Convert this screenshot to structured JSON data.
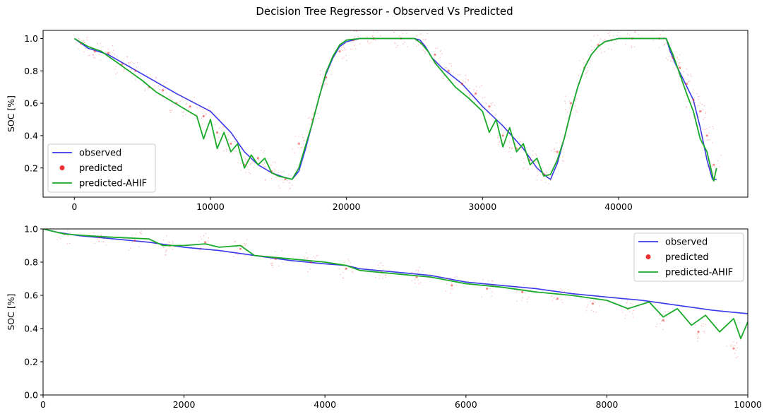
{
  "title": "Decision Tree Regressor - Observed Vs Predicted",
  "colors": {
    "observed": "#3a3ae8",
    "predicted": "#ee3030",
    "predicted_ahif": "#1aaa2a"
  },
  "chart_data": [
    {
      "type": "line",
      "xlabel": "",
      "ylabel": "SOC [%]",
      "xlim": [
        -2300,
        49500
      ],
      "ylim": [
        0.02,
        1.05
      ],
      "xticks": [
        0,
        10000,
        20000,
        30000,
        40000
      ],
      "xtick_labels": [
        "0",
        "10000",
        "20000",
        "30000",
        "40000"
      ],
      "yticks": [
        0.2,
        0.4,
        0.6,
        0.8,
        1.0
      ],
      "ytick_labels": [
        "0.2",
        "0.4",
        "0.6",
        "0.8",
        "1.0"
      ],
      "legend_position": "lower-left",
      "legend": [
        "observed",
        "predicted",
        "predicted-AHIF"
      ],
      "series": [
        {
          "name": "observed",
          "style": "line",
          "x": [
            0,
            1000,
            2500,
            5000,
            7500,
            10000,
            11500,
            12500,
            13500,
            14500,
            15500,
            16000,
            16500,
            17000,
            17500,
            18000,
            18500,
            19000,
            19500,
            20000,
            21000,
            23000,
            25000,
            25400,
            25800,
            26300,
            27000,
            28500,
            30000,
            31500,
            33000,
            34000,
            34800,
            35000,
            35500,
            36000,
            36500,
            37000,
            37500,
            38000,
            38500,
            39000,
            39500,
            40000,
            41000,
            43500,
            43800,
            44200,
            44800,
            45500,
            46000,
            46500,
            46900,
            47200
          ],
          "y": [
            1.0,
            0.94,
            0.9,
            0.78,
            0.66,
            0.55,
            0.42,
            0.3,
            0.22,
            0.17,
            0.14,
            0.13,
            0.18,
            0.32,
            0.48,
            0.64,
            0.78,
            0.88,
            0.95,
            0.98,
            1.0,
            1.0,
            1.0,
            0.99,
            0.95,
            0.88,
            0.82,
            0.72,
            0.58,
            0.46,
            0.32,
            0.2,
            0.14,
            0.13,
            0.23,
            0.38,
            0.55,
            0.7,
            0.82,
            0.9,
            0.95,
            0.98,
            0.99,
            1.0,
            1.0,
            1.0,
            0.92,
            0.84,
            0.74,
            0.62,
            0.45,
            0.25,
            0.13,
            0.13
          ]
        },
        {
          "name": "predicted",
          "style": "scatter",
          "x": [
            500,
            1500,
            2500,
            3500,
            4500,
            5500,
            6500,
            7500,
            8500,
            9500,
            10500,
            11500,
            12500,
            13500,
            14500,
            15500,
            16500,
            17500,
            18500,
            19500,
            20500,
            22000,
            24000,
            25500,
            26500,
            27500,
            28500,
            29500,
            30500,
            31500,
            32500,
            33500,
            34500,
            35500,
            36500,
            37500,
            38500,
            39500,
            41000,
            43000,
            44000,
            44500,
            45000,
            45500,
            46000,
            46500,
            47000
          ],
          "y": [
            0.97,
            0.92,
            0.91,
            0.84,
            0.8,
            0.7,
            0.68,
            0.6,
            0.58,
            0.52,
            0.42,
            0.35,
            0.22,
            0.26,
            0.18,
            0.13,
            0.35,
            0.5,
            0.76,
            0.92,
            0.99,
            1.0,
            1.0,
            0.97,
            0.9,
            0.8,
            0.72,
            0.66,
            0.58,
            0.4,
            0.32,
            0.25,
            0.16,
            0.3,
            0.6,
            0.82,
            0.96,
            0.99,
            1.0,
            1.0,
            0.88,
            0.82,
            0.72,
            0.62,
            0.55,
            0.4,
            0.22
          ]
        },
        {
          "name": "predicted-AHIF",
          "style": "line",
          "x": [
            0,
            1000,
            2000,
            3000,
            4000,
            5000,
            6000,
            7000,
            8000,
            9000,
            9500,
            10000,
            10500,
            11000,
            11500,
            12000,
            12500,
            13000,
            13500,
            14000,
            14500,
            15000,
            15500,
            16000,
            16500,
            17000,
            17500,
            18000,
            18500,
            19000,
            19500,
            20000,
            21000,
            23000,
            25000,
            25500,
            26000,
            26500,
            27000,
            28000,
            29000,
            30000,
            30500,
            31000,
            31500,
            32000,
            32500,
            33000,
            33500,
            34000,
            34500,
            35000,
            35500,
            36000,
            36500,
            37000,
            37500,
            38000,
            38500,
            39000,
            39500,
            40000,
            41000,
            43500,
            44000,
            44500,
            45000,
            45500,
            46000,
            46500,
            47000,
            47200
          ],
          "y": [
            1.0,
            0.95,
            0.92,
            0.86,
            0.8,
            0.74,
            0.67,
            0.62,
            0.57,
            0.52,
            0.38,
            0.5,
            0.32,
            0.42,
            0.3,
            0.35,
            0.2,
            0.28,
            0.22,
            0.26,
            0.17,
            0.15,
            0.14,
            0.13,
            0.2,
            0.34,
            0.48,
            0.64,
            0.79,
            0.89,
            0.96,
            0.99,
            1.0,
            1.0,
            1.0,
            0.97,
            0.92,
            0.85,
            0.8,
            0.7,
            0.63,
            0.55,
            0.42,
            0.5,
            0.33,
            0.45,
            0.3,
            0.35,
            0.22,
            0.26,
            0.15,
            0.16,
            0.25,
            0.38,
            0.55,
            0.7,
            0.82,
            0.9,
            0.95,
            0.98,
            0.99,
            1.0,
            1.0,
            1.0,
            0.9,
            0.78,
            0.66,
            0.55,
            0.38,
            0.3,
            0.12,
            0.2
          ]
        }
      ]
    },
    {
      "type": "line",
      "xlabel": "",
      "ylabel": "SOC [%]",
      "xlim": [
        0,
        10000
      ],
      "ylim": [
        0.0,
        1.0
      ],
      "xticks": [
        0,
        2000,
        4000,
        6000,
        8000,
        10000
      ],
      "xtick_labels": [
        "0",
        "2000",
        "4000",
        "6000",
        "8000",
        "10000"
      ],
      "yticks": [
        0.0,
        0.2,
        0.4,
        0.6,
        0.8,
        1.0
      ],
      "ytick_labels": [
        "0.0",
        "0.2",
        "0.4",
        "0.6",
        "0.8",
        "1.0"
      ],
      "legend_position": "upper-right",
      "legend": [
        "observed",
        "predicted",
        "predicted-AHIF"
      ],
      "series": [
        {
          "name": "observed",
          "style": "line",
          "x": [
            0,
            200,
            500,
            1000,
            1500,
            2000,
            2500,
            3000,
            3500,
            4000,
            4300,
            4500,
            5000,
            5500,
            6000,
            6500,
            7000,
            7500,
            8000,
            8500,
            9000,
            9500,
            10000
          ],
          "y": [
            1.0,
            0.98,
            0.96,
            0.94,
            0.92,
            0.89,
            0.87,
            0.84,
            0.81,
            0.79,
            0.78,
            0.76,
            0.74,
            0.72,
            0.68,
            0.66,
            0.64,
            0.61,
            0.59,
            0.57,
            0.54,
            0.51,
            0.49
          ]
        },
        {
          "name": "predicted",
          "style": "scatter",
          "x": [
            300,
            800,
            1300,
            1800,
            2300,
            2800,
            3300,
            3800,
            4300,
            4800,
            5300,
            5800,
            6300,
            6800,
            7300,
            7800,
            8300,
            8800,
            9300,
            9800
          ],
          "y": [
            0.97,
            0.95,
            0.93,
            0.9,
            0.92,
            0.88,
            0.82,
            0.8,
            0.76,
            0.74,
            0.71,
            0.66,
            0.64,
            0.62,
            0.58,
            0.55,
            0.52,
            0.45,
            0.38,
            0.28
          ]
        },
        {
          "name": "predicted-AHIF",
          "style": "line",
          "x": [
            0,
            300,
            600,
            1000,
            1500,
            1700,
            2000,
            2300,
            2500,
            2800,
            3000,
            3500,
            4000,
            4300,
            4500,
            5000,
            5500,
            6000,
            6500,
            7000,
            7500,
            8000,
            8300,
            8600,
            8800,
            9000,
            9200,
            9400,
            9600,
            9800,
            9900,
            10000
          ],
          "y": [
            1.0,
            0.97,
            0.96,
            0.95,
            0.94,
            0.9,
            0.9,
            0.91,
            0.89,
            0.9,
            0.84,
            0.82,
            0.8,
            0.78,
            0.75,
            0.73,
            0.71,
            0.67,
            0.65,
            0.62,
            0.6,
            0.57,
            0.52,
            0.56,
            0.47,
            0.52,
            0.42,
            0.48,
            0.38,
            0.46,
            0.34,
            0.44
          ]
        }
      ]
    }
  ]
}
